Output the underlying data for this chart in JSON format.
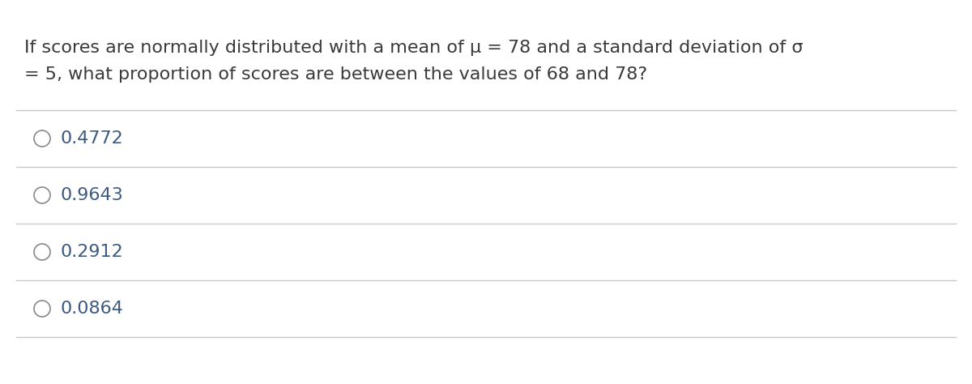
{
  "question_line1": "If scores are normally distributed with a mean of μ = 78 and a standard deviation of σ",
  "question_line2": "= 5, what proportion of scores are between the values of 68 and 78?",
  "options": [
    "0.4772",
    "0.9643",
    "0.2912",
    "0.0864"
  ],
  "bg_color": "#ffffff",
  "question_color": "#3a3a3a",
  "option_text_color": "#3d5a80",
  "line_color": "#c8c8c8",
  "font_size_question": 16,
  "font_size_options": 16,
  "circle_color": "#888888",
  "circle_linewidth": 1.2
}
